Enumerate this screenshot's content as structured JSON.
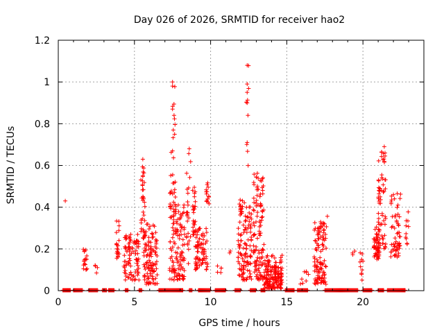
{
  "chart_data": {
    "type": "scatter",
    "title": "Day 026 of 2026, SRMTID for receiver hao2",
    "xlabel": "GPS time / hours",
    "ylabel": "SRMTID / TECUs",
    "xlim": [
      0,
      24
    ],
    "ylim": [
      0,
      1.2
    ],
    "x_ticks": [
      0,
      5,
      10,
      15,
      20
    ],
    "x_tick_labels": [
      "0",
      "5",
      "10",
      "15",
      "20"
    ],
    "y_ticks": [
      0,
      0.2,
      0.4,
      0.6,
      0.8,
      1.0,
      1.2
    ],
    "y_tick_labels": [
      "0",
      "0.2",
      "0.4",
      "0.6",
      "0.8",
      "1",
      "1.2"
    ],
    "grid": true,
    "marker": "+",
    "series": [
      {
        "name": "SRMTID",
        "color": "#ff0000",
        "clusters": [
          {
            "x": [
              0.45,
              0.55
            ],
            "y": [
              0.43,
              0.43
            ],
            "n": 1
          },
          {
            "x": [
              1.6,
              1.9
            ],
            "y": [
              0.1,
              0.21
            ],
            "n": 18
          },
          {
            "x": [
              2.4,
              2.6
            ],
            "y": [
              0.08,
              0.13
            ],
            "n": 4
          },
          {
            "x": [
              3.8,
              4.0
            ],
            "y": [
              0.15,
              0.36
            ],
            "n": 20
          },
          {
            "x": [
              4.3,
              5.3
            ],
            "y": [
              0.05,
              0.27
            ],
            "n": 90
          },
          {
            "x": [
              5.4,
              5.7
            ],
            "y": [
              0.25,
              0.63
            ],
            "n": 35
          },
          {
            "x": [
              5.6,
              6.5
            ],
            "y": [
              0.03,
              0.32
            ],
            "n": 110
          },
          {
            "x": [
              7.3,
              7.7
            ],
            "y": [
              0.35,
              1.0
            ],
            "n": 30
          },
          {
            "x": [
              7.3,
              8.3
            ],
            "y": [
              0.05,
              0.42
            ],
            "n": 120
          },
          {
            "x": [
              8.4,
              8.7
            ],
            "y": [
              0.1,
              0.68
            ],
            "n": 25
          },
          {
            "x": [
              8.8,
              9.0
            ],
            "y": [
              0.26,
              0.5
            ],
            "n": 25
          },
          {
            "x": [
              9.0,
              9.8
            ],
            "y": [
              0.1,
              0.3
            ],
            "n": 80
          },
          {
            "x": [
              9.7,
              9.9
            ],
            "y": [
              0.4,
              0.55
            ],
            "n": 14
          },
          {
            "x": [
              10.4,
              10.9
            ],
            "y": [
              0.08,
              0.13
            ],
            "n": 5
          },
          {
            "x": [
              11.2,
              11.4
            ],
            "y": [
              0.18,
              0.2
            ],
            "n": 2
          },
          {
            "x": [
              11.8,
              12.7
            ],
            "y": [
              0.05,
              0.45
            ],
            "n": 120
          },
          {
            "x": [
              12.3,
              12.5
            ],
            "y": [
              0.59,
              1.08
            ],
            "n": 8
          },
          {
            "x": [
              12.8,
              13.5
            ],
            "y": [
              0.05,
              0.58
            ],
            "n": 110
          },
          {
            "x": [
              13.5,
              14.7
            ],
            "y": [
              0.01,
              0.17
            ],
            "n": 160
          },
          {
            "x": [
              15.8,
              16.5
            ],
            "y": [
              0.03,
              0.1
            ],
            "n": 8
          },
          {
            "x": [
              16.8,
              17.6
            ],
            "y": [
              0.03,
              0.33
            ],
            "n": 110
          },
          {
            "x": [
              17.6,
              17.7
            ],
            "y": [
              0.35,
              0.36
            ],
            "n": 1
          },
          {
            "x": [
              19.3,
              19.5
            ],
            "y": [
              0.17,
              0.2
            ],
            "n": 3
          },
          {
            "x": [
              19.8,
              20.0
            ],
            "y": [
              0.05,
              0.19
            ],
            "n": 10
          },
          {
            "x": [
              20.7,
              21.1
            ],
            "y": [
              0.15,
              0.31
            ],
            "n": 55
          },
          {
            "x": [
              21.0,
              21.5
            ],
            "y": [
              0.2,
              0.69
            ],
            "n": 60
          },
          {
            "x": [
              21.8,
              22.5
            ],
            "y": [
              0.16,
              0.47
            ],
            "n": 60
          },
          {
            "x": [
              22.8,
              23.0
            ],
            "y": [
              0.22,
              0.46
            ],
            "n": 10
          }
        ],
        "zero_segments": [
          [
            0.3,
            0.8
          ],
          [
            1.0,
            1.6
          ],
          [
            2.0,
            2.6
          ],
          [
            2.9,
            3.2
          ],
          [
            3.3,
            3.7
          ],
          [
            4.4,
            4.6
          ],
          [
            5.3,
            5.5
          ],
          [
            6.6,
            8.2
          ],
          [
            8.6,
            8.8
          ],
          [
            9.2,
            10.0
          ],
          [
            10.3,
            11.0
          ],
          [
            11.6,
            12.0
          ],
          [
            12.6,
            13.0
          ],
          [
            13.3,
            13.6
          ],
          [
            14.9,
            15.5
          ],
          [
            15.7,
            16.4
          ],
          [
            17.5,
            19.7
          ],
          [
            20.0,
            20.6
          ],
          [
            21.0,
            21.4
          ],
          [
            21.6,
            22.8
          ]
        ]
      }
    ]
  }
}
